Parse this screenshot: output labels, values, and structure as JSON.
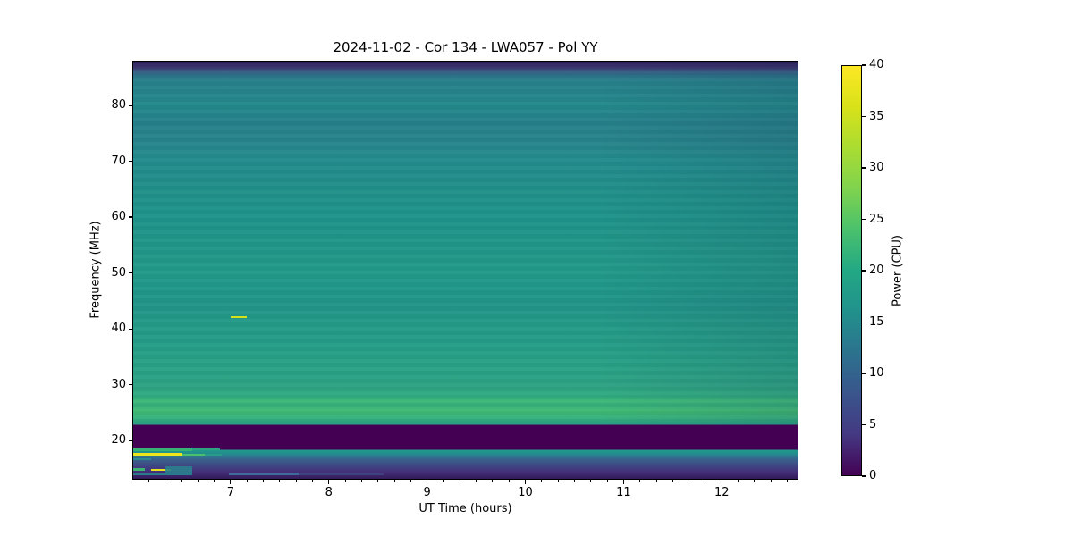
{
  "title": "2024-11-02 - Cor 134 - LWA057 - Pol YY",
  "x_axis": {
    "label": "UT Time (hours)",
    "ticks": [
      7,
      8,
      9,
      10,
      11,
      12
    ],
    "range": [
      6.0,
      12.78
    ],
    "minor_interval": 0.1666667
  },
  "y_axis": {
    "label": "Frequency (MHz)",
    "ticks": [
      20,
      30,
      40,
      50,
      60,
      70,
      80
    ],
    "range": [
      13,
      88
    ]
  },
  "colorbar": {
    "label": "Power (CPU)",
    "ticks": [
      0,
      5,
      10,
      15,
      20,
      25,
      30,
      35,
      40
    ],
    "range": [
      0,
      40
    ],
    "colormap": "viridis"
  },
  "chart_data": {
    "type": "heatmap",
    "title": "2024-11-02 - Cor 134 - LWA057 - Pol YY",
    "xlabel": "UT Time (hours)",
    "ylabel": "Frequency (MHz)",
    "zlabel": "Power (CPU)",
    "x_range_hours": [
      6.0,
      12.78
    ],
    "y_range_mhz": [
      13,
      88
    ],
    "z_range": [
      0,
      40
    ],
    "legend_position": "right-colorbar",
    "grid": false,
    "background_bands": [
      {
        "freq_mhz": [
          86.5,
          88.0
        ],
        "power": 4,
        "note": "dark purple band at top edge"
      },
      {
        "freq_mhz": [
          84.0,
          86.5
        ],
        "power": 12,
        "note": "transition purple-blue to teal"
      },
      {
        "freq_mhz": [
          28.0,
          84.0
        ],
        "power": 19,
        "note": "broad teal continuum with faint horizontal striping, slightly darker toward late times"
      },
      {
        "freq_mhz": [
          23.0,
          28.0
        ],
        "power": 25,
        "note": "brighter green band"
      },
      {
        "freq_mhz": [
          18.4,
          22.9
        ],
        "power": 0,
        "note": "blanked/flagged dark band (~0 power)"
      },
      {
        "freq_mhz": [
          17.7,
          18.4
        ],
        "power": 20,
        "note": "teal row spanning all times"
      },
      {
        "freq_mhz": [
          13.0,
          17.7
        ],
        "power": 10,
        "note": "low band fading from ~15 down to ~2 toward bottom edge"
      }
    ],
    "features": [
      {
        "name": "transient-dash-42mhz",
        "t0": 6.99,
        "t1": 7.16,
        "f0": 42.1,
        "f1": 42.45,
        "power": 34,
        "color": "#d8e219",
        "opacity": 1
      },
      {
        "name": "green-row-18.5mhz",
        "t0": 6.0,
        "t1": 6.6,
        "f0": 18.3,
        "f1": 18.85,
        "power": 26,
        "color": "#38b274",
        "opacity": 1
      },
      {
        "name": "green-row-18.5mhz-ext",
        "t0": 6.6,
        "t1": 6.88,
        "f0": 18.4,
        "f1": 18.8,
        "power": 23,
        "color": "#2da381",
        "opacity": 1
      },
      {
        "name": "rfi-line-17.6mhz-yellow",
        "t0": 6.0,
        "t1": 6.5,
        "f0": 17.45,
        "f1": 17.9,
        "power": 40,
        "color": "#efe51c",
        "opacity": 1
      },
      {
        "name": "rfi-line-17.6mhz-green",
        "t0": 6.5,
        "t1": 6.73,
        "f0": 17.45,
        "f1": 17.85,
        "power": 30,
        "color": "#4ac16d",
        "opacity": 1
      },
      {
        "name": "rfi-line-17.6mhz-teal",
        "t0": 6.73,
        "t1": 6.9,
        "f0": 17.45,
        "f1": 17.85,
        "power": 22,
        "color": "#2a9d8a",
        "opacity": 1
      },
      {
        "name": "teal-seg-16.8mhz",
        "t0": 6.0,
        "t1": 6.18,
        "f0": 16.6,
        "f1": 17.05,
        "power": 20,
        "color": "#2b8b8e",
        "opacity": 1
      },
      {
        "name": "green-seg-15mhz",
        "t0": 6.0,
        "t1": 6.12,
        "f0": 14.7,
        "f1": 15.2,
        "power": 28,
        "color": "#3cb573",
        "opacity": 1
      },
      {
        "name": "rfi-line-15mhz-yellow",
        "t0": 6.18,
        "t1": 6.38,
        "f0": 14.75,
        "f1": 15.15,
        "power": 40,
        "color": "#e7e41f",
        "opacity": 1
      },
      {
        "name": "teal-band-15mhz",
        "t0": 6.33,
        "t1": 6.6,
        "f0": 14.5,
        "f1": 15.6,
        "power": 18,
        "color": "#2b7f8c",
        "opacity": 0.9
      },
      {
        "name": "teal-row-14.2mhz",
        "t0": 6.0,
        "t1": 6.6,
        "f0": 13.95,
        "f1": 14.45,
        "power": 16,
        "color": "#2a7a8e",
        "opacity": 1
      },
      {
        "name": "blue-streak-14.2mhz",
        "t0": 6.97,
        "t1": 7.68,
        "f0": 13.95,
        "f1": 14.4,
        "power": 12,
        "color": "#3e6a9c",
        "opacity": 1
      },
      {
        "name": "blue-streak-14.2mhz-fade",
        "t0": 7.68,
        "t1": 8.55,
        "f0": 13.95,
        "f1": 14.35,
        "power": 9,
        "color": "#3a5a8e",
        "opacity": 0.55
      }
    ]
  }
}
